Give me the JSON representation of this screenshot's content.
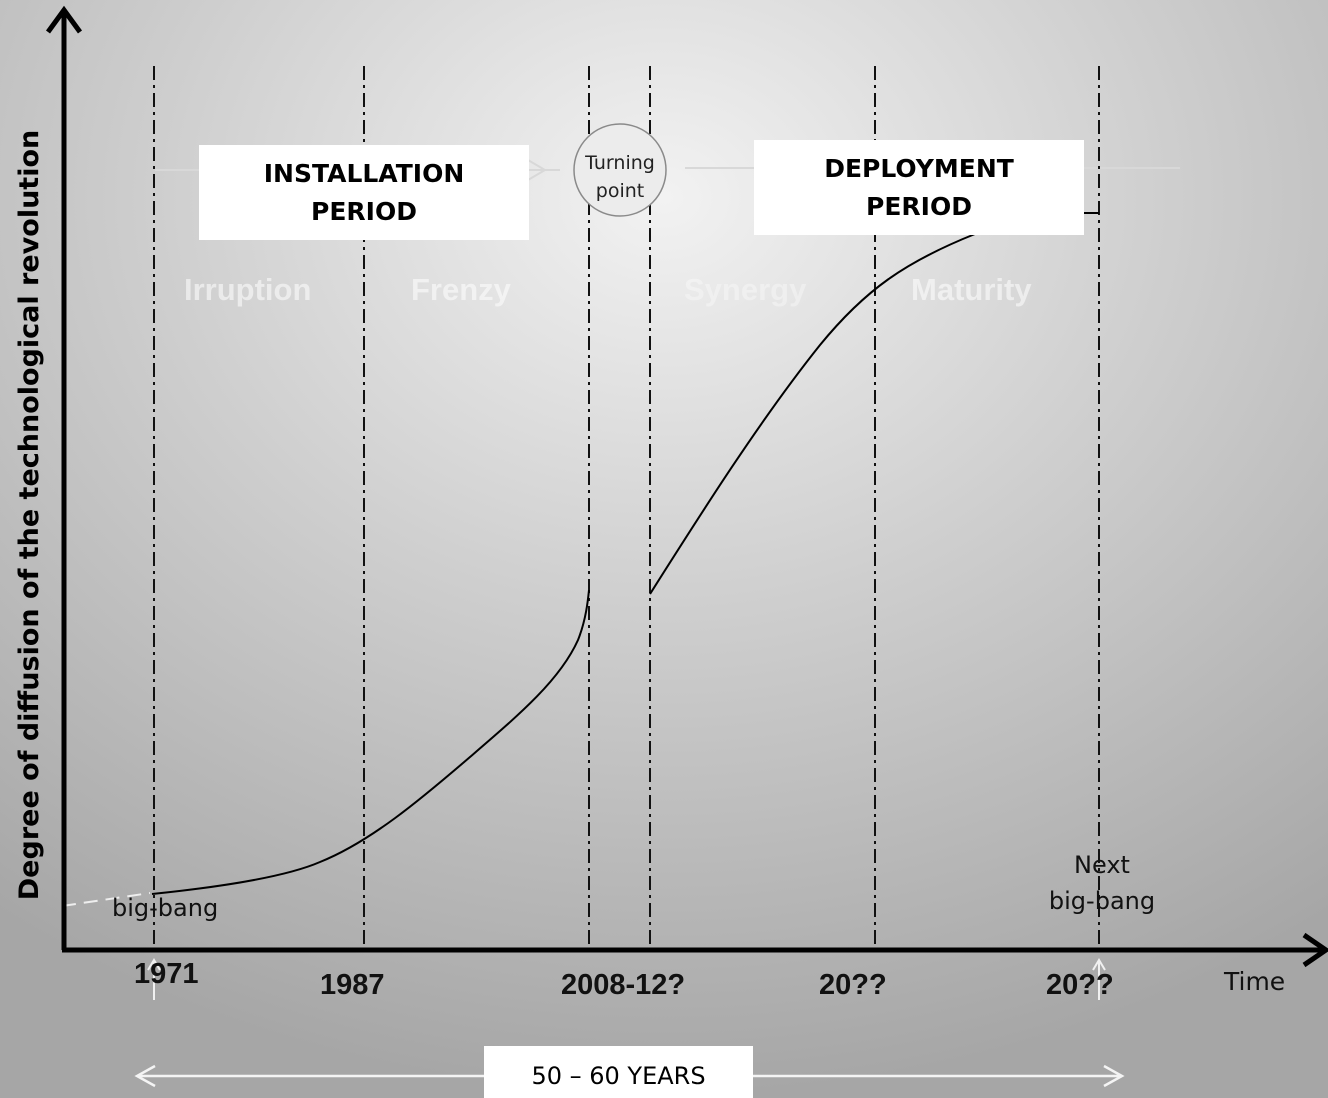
{
  "axis": {
    "y_label": "Degree of diffusion of the technological revolution",
    "x_label": "Time"
  },
  "periods": {
    "installation": "INSTALLATION\nPERIOD",
    "deployment": "DEPLOYMENT\nPERIOD",
    "turning_point": "Turning\npoint"
  },
  "phases": [
    "Irruption",
    "Frenzy",
    "Synergy",
    "Maturity"
  ],
  "years": [
    "1971",
    "1987",
    "2008-12?",
    "20??",
    "20??"
  ],
  "annotations": {
    "big_bang": "big-bang",
    "next_big_bang": "Next\nbig-bang"
  },
  "duration": "50 – 60 YEARS"
}
